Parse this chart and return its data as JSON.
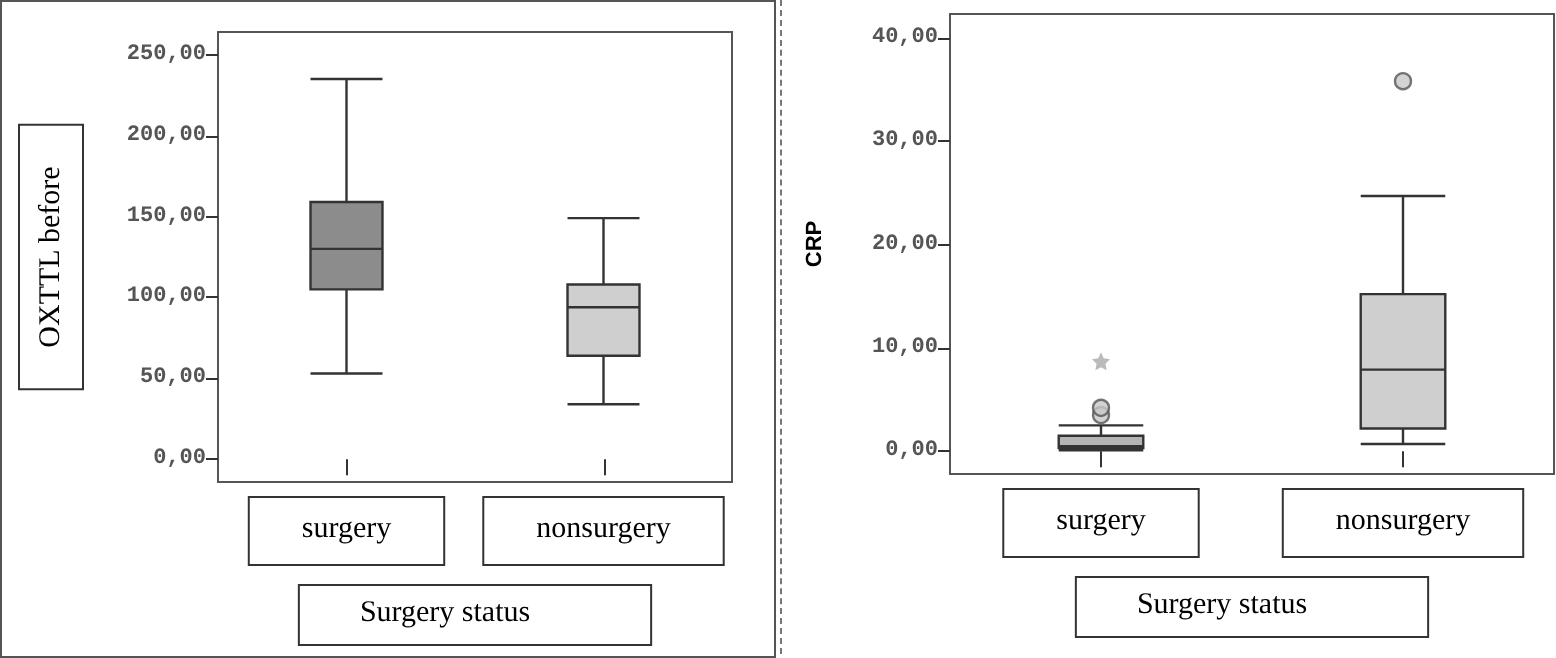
{
  "chart_data": [
    {
      "type": "box",
      "categories": [
        "surgery",
        "nonsurgery"
      ],
      "xlabel": "Surgery status",
      "ylabel": "OXTTL before",
      "colors": [
        "#8c8c8c",
        "#cfcfcf"
      ],
      "boxes": [
        {
          "low": 53,
          "q1": 105,
          "median": 130,
          "q3": 159,
          "high": 235
        },
        {
          "low": 34,
          "q1": 64,
          "median": 94,
          "q3": 108,
          "high": 149
        }
      ],
      "ylim": [
        -14,
        264
      ],
      "yticks": [
        {
          "value": 0,
          "label": "0,00"
        },
        {
          "value": 50,
          "label": "50,00"
        },
        {
          "value": 100,
          "label": "100,00"
        },
        {
          "value": 150,
          "label": "150,00"
        },
        {
          "value": 200,
          "label": "200,00"
        },
        {
          "value": 250,
          "label": "250,00"
        }
      ]
    },
    {
      "type": "box",
      "categories": [
        "surgery",
        "nonsurgery"
      ],
      "xlabel": "Surgery status",
      "ylabel": "CRP",
      "colors": [
        "#b4b4b4",
        "#cfcfcf"
      ],
      "boxes": [
        {
          "low": 0.1,
          "q1": 0.3,
          "median": 0.5,
          "q3": 1.5,
          "high": 2.5,
          "outliers": [
            3.5,
            4.2,
            8.7
          ]
        },
        {
          "low": 0.7,
          "q1": 2.2,
          "median": 7.9,
          "q3": 15.2,
          "high": 24.7,
          "outliers": [
            35.8
          ]
        }
      ],
      "ylim": [
        -2.2,
        42.3
      ],
      "yticks": [
        {
          "value": 0,
          "label": "0,00"
        },
        {
          "value": 10,
          "label": "10,00"
        },
        {
          "value": 20,
          "label": "20,00"
        },
        {
          "value": 30,
          "label": "30,00"
        },
        {
          "value": 40,
          "label": "40,00"
        }
      ]
    }
  ]
}
